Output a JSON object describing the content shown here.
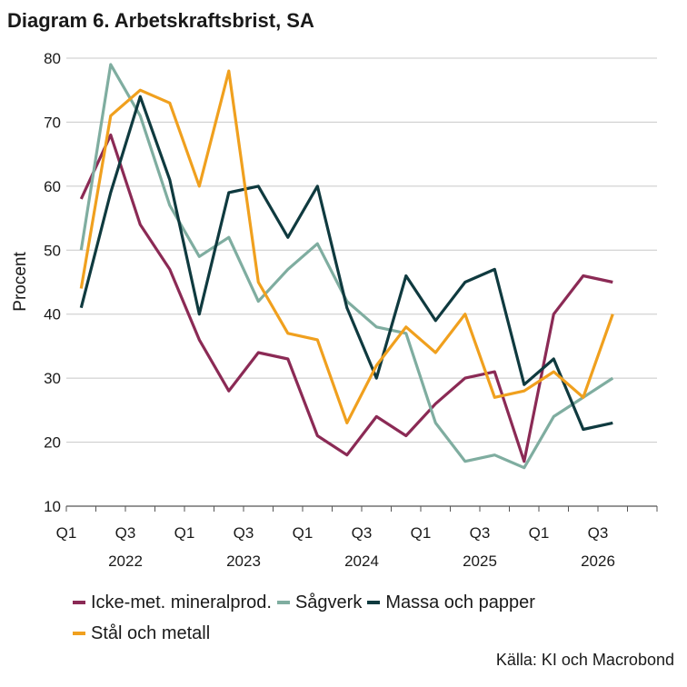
{
  "title": "Diagram 6. Arbetskraftsbrist, SA",
  "source": "Källa: KI och Macrobond",
  "chart_data": {
    "type": "line",
    "ylabel": "Procent",
    "ylim": [
      10,
      80
    ],
    "yticks": [
      10,
      20,
      30,
      40,
      50,
      60,
      70,
      80
    ],
    "grid": true,
    "legend_position": "bottom",
    "x": [
      "2022 Q1",
      "2022 Q2",
      "2022 Q3",
      "2022 Q4",
      "2023 Q1",
      "2023 Q2",
      "2023 Q3",
      "2023 Q4",
      "2024 Q1",
      "2024 Q2",
      "2024 Q3",
      "2024 Q4",
      "2025 Q1",
      "2025 Q2",
      "2025 Q3",
      "2025 Q4",
      "2026 Q1",
      "2026 Q2",
      "2026 Q3",
      "2026 Q4"
    ],
    "x_tick_labels": [
      "Q1",
      "",
      "Q3",
      "",
      "Q1",
      "",
      "Q3",
      "",
      "Q1",
      "",
      "Q3",
      "",
      "Q1",
      "",
      "Q3",
      "",
      "Q1",
      "",
      "Q3",
      ""
    ],
    "year_labels": [
      {
        "label": "2022",
        "after_index": 2
      },
      {
        "label": "2023",
        "after_index": 6
      },
      {
        "label": "2024",
        "after_index": 10
      },
      {
        "label": "2025",
        "after_index": 14
      },
      {
        "label": "2026",
        "after_index": 18
      }
    ],
    "series": [
      {
        "name": "Icke-met. mineralprod.",
        "color": "#8B2A55",
        "values": [
          58,
          68,
          54,
          47,
          36,
          28,
          34,
          33,
          21,
          18,
          24,
          21,
          26,
          30,
          31,
          17,
          40,
          46,
          45,
          null
        ]
      },
      {
        "name": "Sågverk",
        "color": "#7FADA0",
        "values": [
          50,
          79,
          71,
          57,
          49,
          52,
          42,
          47,
          51,
          42,
          38,
          37,
          23,
          17,
          18,
          16,
          24,
          27,
          30,
          null
        ]
      },
      {
        "name": "Massa och papper",
        "color": "#0F3A3F",
        "values": [
          41,
          59,
          74,
          61,
          40,
          59,
          60,
          52,
          60,
          41,
          30,
          46,
          39,
          45,
          47,
          29,
          33,
          22,
          23,
          null
        ]
      },
      {
        "name": "Stål och metall",
        "color": "#F0A01E",
        "values": [
          44,
          71,
          75,
          73,
          60,
          78,
          45,
          37,
          36,
          23,
          32,
          38,
          34,
          40,
          27,
          28,
          31,
          27,
          40,
          null
        ]
      }
    ]
  }
}
